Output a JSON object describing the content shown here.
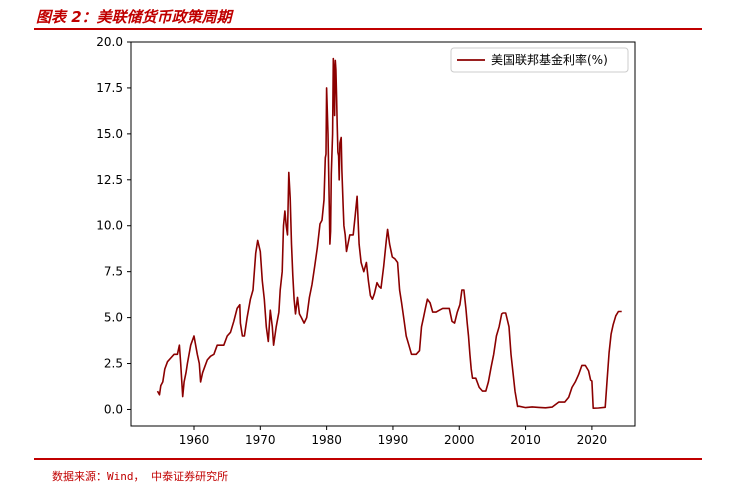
{
  "header": {
    "title": "图表 2：美联储货币政策周期"
  },
  "footer": {
    "source": "数据来源：Wind， 中泰证券研究所"
  },
  "colors": {
    "accent": "#c00000",
    "series": "#8b0000"
  },
  "chart_data": {
    "type": "line",
    "title": "",
    "xlabel": "",
    "ylabel": "",
    "xlim": [
      1950.5,
      2026.5
    ],
    "ylim": [
      -0.9,
      20.0
    ],
    "xticks": [
      1960,
      1970,
      1980,
      1990,
      2000,
      2010,
      2020
    ],
    "xtick_labels": [
      "1960",
      "1970",
      "1980",
      "1990",
      "2000",
      "2010",
      "2020"
    ],
    "yticks": [
      0.0,
      2.5,
      5.0,
      7.5,
      10.0,
      12.5,
      15.0,
      17.5,
      20.0
    ],
    "ytick_labels": [
      "0.0",
      "2.5",
      "5.0",
      "7.5",
      "10.0",
      "12.5",
      "15.0",
      "17.5",
      "20.0"
    ],
    "grid": false,
    "legend_position": "top-right",
    "series": [
      {
        "name": "美国联邦基金利率(%)",
        "color": "#8b0000",
        "x": [
          1954.5,
          1954.8,
          1955.0,
          1955.3,
          1955.6,
          1956.0,
          1956.5,
          1957.0,
          1957.5,
          1957.8,
          1958.0,
          1958.3,
          1958.5,
          1958.8,
          1959.0,
          1959.5,
          1960.0,
          1960.5,
          1960.8,
          1961.0,
          1961.3,
          1961.6,
          1962.0,
          1962.5,
          1963.0,
          1963.5,
          1964.0,
          1964.5,
          1965.0,
          1965.5,
          1966.0,
          1966.5,
          1966.9,
          1967.0,
          1967.3,
          1967.6,
          1968.0,
          1968.5,
          1968.9,
          1969.3,
          1969.6,
          1970.0,
          1970.3,
          1970.6,
          1970.9,
          1971.2,
          1971.5,
          1971.8,
          1972.0,
          1972.4,
          1972.8,
          1973.0,
          1973.3,
          1973.5,
          1973.7,
          1973.9,
          1974.1,
          1974.3,
          1974.5,
          1974.7,
          1974.9,
          1975.1,
          1975.3,
          1975.6,
          1975.9,
          1976.2,
          1976.6,
          1977.0,
          1977.4,
          1977.8,
          1978.2,
          1978.6,
          1979.0,
          1979.3,
          1979.6,
          1979.8,
          1979.9,
          1980.0,
          1980.2,
          1980.4,
          1980.5,
          1980.6,
          1980.7,
          1980.9,
          1981.0,
          1981.1,
          1981.2,
          1981.3,
          1981.4,
          1981.5,
          1981.6,
          1981.7,
          1981.8,
          1981.9,
          1982.0,
          1982.2,
          1982.3,
          1982.5,
          1982.6,
          1982.8,
          1983.0,
          1983.5,
          1984.0,
          1984.3,
          1984.6,
          1984.9,
          1985.2,
          1985.6,
          1986.0,
          1986.3,
          1986.6,
          1986.9,
          1987.2,
          1987.6,
          1987.9,
          1988.2,
          1988.6,
          1989.0,
          1989.2,
          1989.5,
          1989.9,
          1990.3,
          1990.7,
          1991.0,
          1991.3,
          1991.7,
          1992.0,
          1992.4,
          1992.8,
          1993.5,
          1994.0,
          1994.3,
          1994.6,
          1994.9,
          1995.2,
          1995.6,
          1996.0,
          1996.5,
          1997.0,
          1997.5,
          1998.0,
          1998.5,
          1998.9,
          1999.3,
          1999.7,
          2000.1,
          2000.4,
          2000.7,
          2001.0,
          2001.2,
          2001.4,
          2001.6,
          2001.8,
          2002.0,
          2002.5,
          2003.0,
          2003.5,
          2004.0,
          2004.4,
          2004.8,
          2005.2,
          2005.6,
          2006.0,
          2006.4,
          2006.6,
          2007.0,
          2007.5,
          2007.8,
          2008.1,
          2008.4,
          2008.8,
          2009.0,
          2010.0,
          2011.0,
          2012.0,
          2013.0,
          2014.0,
          2015.0,
          2015.9,
          2016.5,
          2017.0,
          2017.5,
          2018.0,
          2018.5,
          2019.0,
          2019.5,
          2019.8,
          2020.0,
          2020.2,
          2021.0,
          2022.0,
          2022.3,
          2022.6,
          2022.9,
          2023.2,
          2023.6,
          2024.0,
          2024.5
        ],
        "values": [
          1.0,
          0.8,
          1.3,
          1.5,
          2.2,
          2.6,
          2.8,
          3.0,
          3.0,
          3.5,
          2.5,
          0.7,
          1.5,
          2.0,
          2.5,
          3.5,
          4.0,
          3.0,
          2.5,
          1.5,
          2.0,
          2.3,
          2.7,
          2.9,
          3.0,
          3.5,
          3.5,
          3.5,
          4.0,
          4.2,
          4.8,
          5.5,
          5.7,
          4.7,
          4.0,
          4.0,
          5.0,
          6.0,
          6.5,
          8.5,
          9.2,
          8.6,
          7.0,
          6.0,
          4.5,
          3.7,
          5.4,
          4.5,
          3.5,
          4.5,
          5.3,
          6.5,
          7.5,
          10.0,
          10.8,
          10.0,
          9.5,
          12.9,
          11.5,
          9.0,
          7.3,
          6.0,
          5.2,
          6.1,
          5.2,
          5.0,
          4.7,
          5.0,
          6.1,
          6.8,
          7.8,
          8.8,
          10.1,
          10.3,
          11.4,
          13.7,
          13.9,
          17.5,
          15.0,
          11.0,
          9.0,
          9.7,
          12.8,
          15.0,
          19.1,
          18.5,
          16.0,
          19.0,
          18.5,
          17.0,
          15.5,
          14.0,
          13.8,
          12.5,
          14.5,
          14.8,
          13.0,
          11.0,
          10.0,
          9.5,
          8.6,
          9.5,
          9.5,
          10.5,
          11.6,
          9.0,
          8.0,
          7.5,
          8.0,
          7.0,
          6.2,
          6.0,
          6.3,
          6.9,
          6.7,
          6.6,
          7.8,
          9.2,
          9.8,
          9.0,
          8.3,
          8.2,
          8.0,
          6.5,
          5.8,
          4.8,
          4.0,
          3.5,
          3.0,
          3.0,
          3.2,
          4.5,
          5.0,
          5.5,
          6.0,
          5.8,
          5.3,
          5.3,
          5.4,
          5.5,
          5.5,
          5.5,
          4.8,
          4.7,
          5.3,
          5.7,
          6.5,
          6.5,
          5.5,
          4.7,
          4.0,
          3.0,
          2.2,
          1.7,
          1.7,
          1.2,
          1.0,
          1.0,
          1.5,
          2.3,
          3.0,
          4.0,
          4.5,
          5.2,
          5.25,
          5.25,
          4.5,
          3.0,
          2.0,
          1.0,
          0.16,
          0.18,
          0.1,
          0.14,
          0.11,
          0.09,
          0.13,
          0.4,
          0.4,
          0.66,
          1.2,
          1.5,
          1.9,
          2.4,
          2.4,
          2.1,
          1.6,
          1.55,
          0.07,
          0.08,
          0.12,
          1.6,
          3.1,
          4.1,
          4.6,
          5.1,
          5.33,
          5.33
        ]
      }
    ]
  }
}
